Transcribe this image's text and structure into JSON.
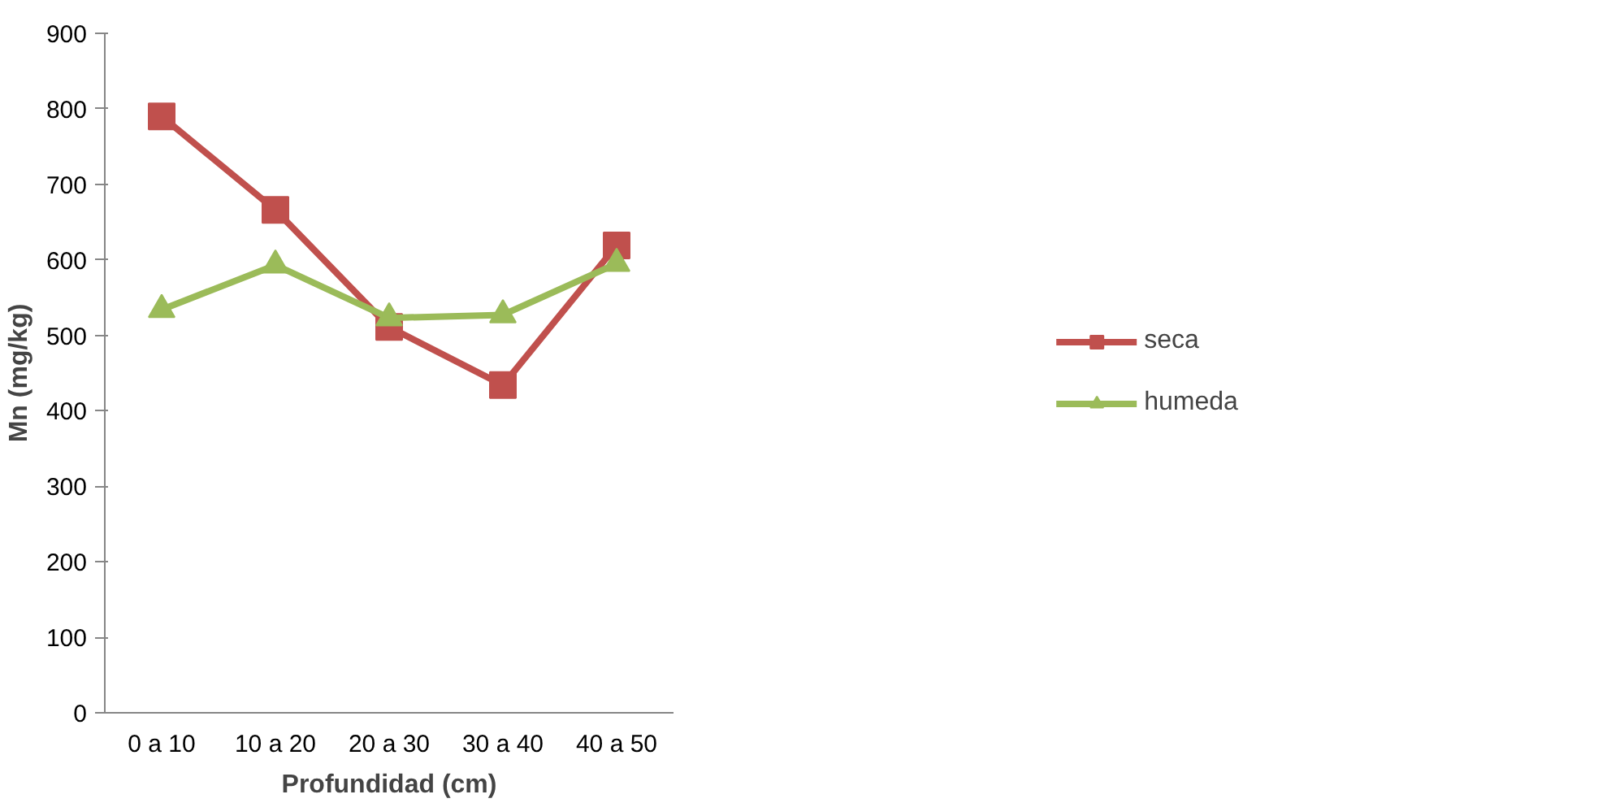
{
  "chart_data": {
    "type": "line",
    "xlabel": "Profundidad (cm)",
    "ylabel": "Mn (mg/kg)",
    "categories": [
      "0 a 10",
      "10 a 20",
      "20 a 30",
      "30 a 40",
      "40 a 50"
    ],
    "series": [
      {
        "name": "seca",
        "color": "#c0504d",
        "marker": "square",
        "values": [
          790,
          666,
          511,
          434,
          619
        ]
      },
      {
        "name": "humeda",
        "color": "#9bbb59",
        "marker": "triangle",
        "values": [
          534,
          593,
          523,
          527,
          595
        ]
      }
    ],
    "ylim": [
      0,
      900
    ],
    "yticks": [
      0,
      100,
      200,
      300,
      400,
      500,
      600,
      700,
      800,
      900
    ],
    "grid": false,
    "legend": "right",
    "line_style": "solid"
  }
}
